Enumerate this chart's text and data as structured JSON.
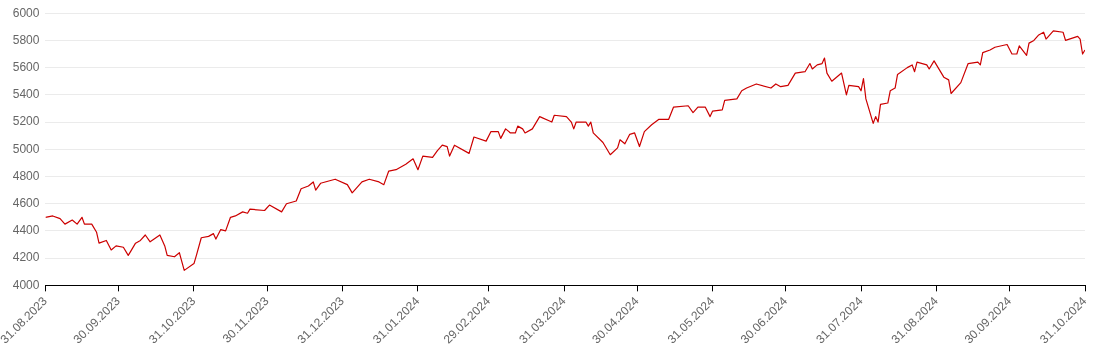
{
  "chart_data": {
    "type": "line",
    "grid": "y",
    "marker": "none",
    "line_style": "solid",
    "xlim": [
      "2023-08-31",
      "2024-10-31"
    ],
    "ylim": [
      4000,
      6000
    ],
    "yticks": [
      4000,
      4200,
      4400,
      4600,
      4800,
      5000,
      5200,
      5400,
      5600,
      5800,
      6000
    ],
    "xticks": [
      {
        "value": "2023-08-31",
        "label": "31.08.2023"
      },
      {
        "value": "2023-09-30",
        "label": "30.09.2023"
      },
      {
        "value": "2023-10-31",
        "label": "31.10.2023"
      },
      {
        "value": "2023-11-30",
        "label": "30.11.2023"
      },
      {
        "value": "2023-12-31",
        "label": "31.12.2023"
      },
      {
        "value": "2024-01-31",
        "label": "31.01.2024"
      },
      {
        "value": "2024-02-29",
        "label": "29.02.2024"
      },
      {
        "value": "2024-03-31",
        "label": "31.03.2024"
      },
      {
        "value": "2024-04-30",
        "label": "30.04.2024"
      },
      {
        "value": "2024-05-31",
        "label": "31.05.2024"
      },
      {
        "value": "2024-06-30",
        "label": "30.06.2024"
      },
      {
        "value": "2024-07-31",
        "label": "31.07.2024"
      },
      {
        "value": "2024-08-31",
        "label": "31.08.2024"
      },
      {
        "value": "2024-09-30",
        "label": "30.09.2024"
      },
      {
        "value": "2024-10-31",
        "label": "31.10.2024"
      }
    ],
    "series": [
      {
        "color": "#cc0000",
        "x": [
          "2023-08-31",
          "2023-09-03",
          "2023-09-06",
          "2023-09-08",
          "2023-09-11",
          "2023-09-13",
          "2023-09-15",
          "2023-09-16",
          "2023-09-19",
          "2023-09-21",
          "2023-09-22",
          "2023-09-25",
          "2023-09-27",
          "2023-09-29",
          "2023-10-02",
          "2023-10-04",
          "2023-10-05",
          "2023-10-07",
          "2023-10-09",
          "2023-10-11",
          "2023-10-13",
          "2023-10-17",
          "2023-10-19",
          "2023-10-20",
          "2023-10-23",
          "2023-10-25",
          "2023-10-27",
          "2023-10-31",
          "2023-11-01",
          "2023-11-03",
          "2023-11-06",
          "2023-11-08",
          "2023-11-09",
          "2023-11-11",
          "2023-11-13",
          "2023-11-15",
          "2023-11-17",
          "2023-11-20",
          "2023-11-22",
          "2023-11-23",
          "2023-11-29",
          "2023-12-01",
          "2023-12-06",
          "2023-12-08",
          "2023-12-12",
          "2023-12-14",
          "2023-12-17",
          "2023-12-19",
          "2023-12-20",
          "2023-12-22",
          "2023-12-28",
          "2024-01-02",
          "2024-01-04",
          "2024-01-08",
          "2024-01-11",
          "2024-01-15",
          "2024-01-17",
          "2024-01-19",
          "2024-01-22",
          "2024-01-26",
          "2024-01-29",
          "2024-01-31",
          "2024-02-02",
          "2024-02-06",
          "2024-02-08",
          "2024-02-10",
          "2024-02-12",
          "2024-02-13",
          "2024-02-15",
          "2024-02-21",
          "2024-02-23",
          "2024-02-28",
          "2024-03-01",
          "2024-03-04",
          "2024-03-05",
          "2024-03-07",
          "2024-03-09",
          "2024-03-11",
          "2024-03-12",
          "2024-03-14",
          "2024-03-15",
          "2024-03-18",
          "2024-03-21",
          "2024-03-26",
          "2024-03-27",
          "2024-04-01",
          "2024-04-03",
          "2024-04-04",
          "2024-04-05",
          "2024-04-09",
          "2024-04-10",
          "2024-04-11",
          "2024-04-12",
          "2024-04-16",
          "2024-04-19",
          "2024-04-22",
          "2024-04-23",
          "2024-04-25",
          "2024-04-27",
          "2024-04-29",
          "2024-05-01",
          "2024-05-03",
          "2024-05-06",
          "2024-05-09",
          "2024-05-13",
          "2024-05-15",
          "2024-05-21",
          "2024-05-23",
          "2024-05-25",
          "2024-05-28",
          "2024-05-30",
          "2024-05-31",
          "2024-06-04",
          "2024-06-05",
          "2024-06-10",
          "2024-06-12",
          "2024-06-14",
          "2024-06-18",
          "2024-06-24",
          "2024-06-26",
          "2024-06-28",
          "2024-07-01",
          "2024-07-04",
          "2024-07-08",
          "2024-07-10",
          "2024-07-11",
          "2024-07-13",
          "2024-07-15",
          "2024-07-16",
          "2024-07-17",
          "2024-07-19",
          "2024-07-23",
          "2024-07-25",
          "2024-07-26",
          "2024-07-30",
          "2024-07-31",
          "2024-08-01",
          "2024-08-02",
          "2024-08-05",
          "2024-08-06",
          "2024-08-07",
          "2024-08-08",
          "2024-08-11",
          "2024-08-12",
          "2024-08-14",
          "2024-08-15",
          "2024-08-19",
          "2024-08-21",
          "2024-08-22",
          "2024-08-23",
          "2024-08-27",
          "2024-08-28",
          "2024-08-30",
          "2024-09-03",
          "2024-09-05",
          "2024-09-06",
          "2024-09-10",
          "2024-09-13",
          "2024-09-17",
          "2024-09-18",
          "2024-09-19",
          "2024-09-22",
          "2024-09-24",
          "2024-09-29",
          "2024-10-01",
          "2024-10-03",
          "2024-10-04",
          "2024-10-07",
          "2024-10-08",
          "2024-10-10",
          "2024-10-12",
          "2024-10-14",
          "2024-10-15",
          "2024-10-18",
          "2024-10-22",
          "2024-10-23",
          "2024-10-28",
          "2024-10-29",
          "2024-10-30",
          "2024-10-31"
        ],
        "values": [
          4500,
          4510,
          4490,
          4450,
          4480,
          4450,
          4500,
          4450,
          4450,
          4390,
          4310,
          4330,
          4260,
          4290,
          4280,
          4220,
          4250,
          4310,
          4330,
          4370,
          4320,
          4370,
          4290,
          4220,
          4210,
          4240,
          4110,
          4160,
          4220,
          4350,
          4360,
          4380,
          4340,
          4410,
          4400,
          4500,
          4510,
          4540,
          4530,
          4560,
          4550,
          4590,
          4540,
          4600,
          4620,
          4710,
          4730,
          4760,
          4700,
          4750,
          4780,
          4740,
          4680,
          4760,
          4780,
          4760,
          4740,
          4840,
          4850,
          4890,
          4930,
          4850,
          4950,
          4940,
          4990,
          5030,
          5020,
          4950,
          5030,
          4970,
          5090,
          5060,
          5130,
          5130,
          5080,
          5150,
          5120,
          5120,
          5170,
          5150,
          5120,
          5150,
          5240,
          5200,
          5250,
          5240,
          5200,
          5150,
          5200,
          5200,
          5170,
          5200,
          5120,
          5050,
          4960,
          5010,
          5070,
          5040,
          5110,
          5120,
          5020,
          5130,
          5180,
          5220,
          5220,
          5310,
          5320,
          5270,
          5310,
          5310,
          5240,
          5280,
          5290,
          5360,
          5370,
          5430,
          5450,
          5480,
          5450,
          5480,
          5460,
          5470,
          5560,
          5570,
          5630,
          5590,
          5620,
          5630,
          5670,
          5560,
          5500,
          5560,
          5400,
          5470,
          5460,
          5430,
          5520,
          5370,
          5190,
          5240,
          5200,
          5330,
          5340,
          5430,
          5450,
          5550,
          5600,
          5620,
          5570,
          5640,
          5620,
          5590,
          5650,
          5530,
          5510,
          5410,
          5490,
          5630,
          5640,
          5620,
          5710,
          5730,
          5750,
          5770,
          5700,
          5700,
          5760,
          5690,
          5780,
          5800,
          5840,
          5860,
          5810,
          5870,
          5860,
          5800,
          5830,
          5810,
          5700,
          5730
        ]
      }
    ]
  }
}
